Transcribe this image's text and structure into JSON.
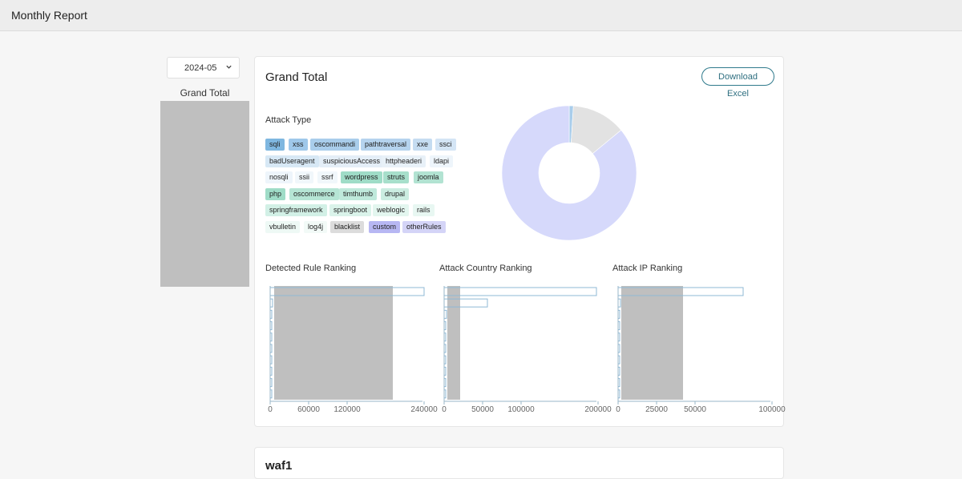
{
  "header": {
    "title": "Monthly Report"
  },
  "month_select": {
    "value": "2024-05"
  },
  "sidebar": {
    "label": "Grand Total"
  },
  "card": {
    "title": "Grand Total",
    "download_label": "Download Excel",
    "attack_type_label": "Attack Type",
    "tags": [
      {
        "label": "sqli",
        "color": "#7fb7e0"
      },
      {
        "label": "xss",
        "color": "#9fc8ea"
      },
      {
        "label": "oscommandi",
        "color": "#a9cdeb"
      },
      {
        "label": "pathtraversal",
        "color": "#b5d3ee"
      },
      {
        "label": "xxe",
        "color": "#c5dcf1"
      },
      {
        "label": "ssci",
        "color": "#d4e5f5"
      },
      {
        "label": "badUseragent",
        "color": "#d7e8f5"
      },
      {
        "label": "suspiciousAccess",
        "color": "#e4eef7"
      },
      {
        "label": "httpheaderi",
        "color": "#e8f1f8"
      },
      {
        "label": "ldapi",
        "color": "#eef5fb"
      },
      {
        "label": "nosqli",
        "color": "#eef5fb"
      },
      {
        "label": "ssii",
        "color": "#f1f7fb"
      },
      {
        "label": "ssrf",
        "color": "#f1f7fb"
      },
      {
        "label": "wordpress",
        "color": "#9fdcc7"
      },
      {
        "label": "struts",
        "color": "#a7dfcb"
      },
      {
        "label": "joomla",
        "color": "#b2e3d2"
      },
      {
        "label": "php",
        "color": "#9fdcc7"
      },
      {
        "label": "oscommerce",
        "color": "#b6e5d5"
      },
      {
        "label": "timthumb",
        "color": "#bfe9db"
      },
      {
        "label": "drupal",
        "color": "#cbede1"
      },
      {
        "label": "springframework",
        "color": "#d2f0e6"
      },
      {
        "label": "springboot",
        "color": "#daf3ea"
      },
      {
        "label": "weblogic",
        "color": "#e3f6ef"
      },
      {
        "label": "rails",
        "color": "#e8f7f2"
      },
      {
        "label": "vbulletin",
        "color": "#eef9f5"
      },
      {
        "label": "log4j",
        "color": "#f2faf7"
      },
      {
        "label": "blacklist",
        "color": "#dcdcdc"
      },
      {
        "label": "custom",
        "color": "#b7b7f3"
      },
      {
        "label": "otherRules",
        "color": "#d4d4f7"
      }
    ],
    "pie": {
      "colors": [
        "#d6d9fb",
        "#e2e2e2",
        "#a9cdeb"
      ],
      "values": [
        0.86,
        0.13,
        0.01
      ]
    },
    "rankings": {
      "rule": {
        "label": "Detected Rule Ranking",
        "ticks": [
          "0",
          "60000",
          "120000",
          "240000"
        ],
        "tick_values": [
          0,
          60000,
          120000,
          240000
        ],
        "max": 240000
      },
      "country": {
        "label": "Attack Country Ranking",
        "ticks": [
          "0",
          "50000",
          "100000",
          "200000"
        ],
        "tick_values": [
          0,
          50000,
          100000,
          200000
        ],
        "max": 200000
      },
      "ip": {
        "label": "Attack IP Ranking",
        "ticks": [
          "0",
          "25000",
          "50000",
          "100000"
        ],
        "tick_values": [
          0,
          25000,
          50000,
          100000
        ],
        "max": 100000
      }
    },
    "bar_color": "#8fb8d6"
  },
  "card2": {
    "title": "waf1"
  }
}
